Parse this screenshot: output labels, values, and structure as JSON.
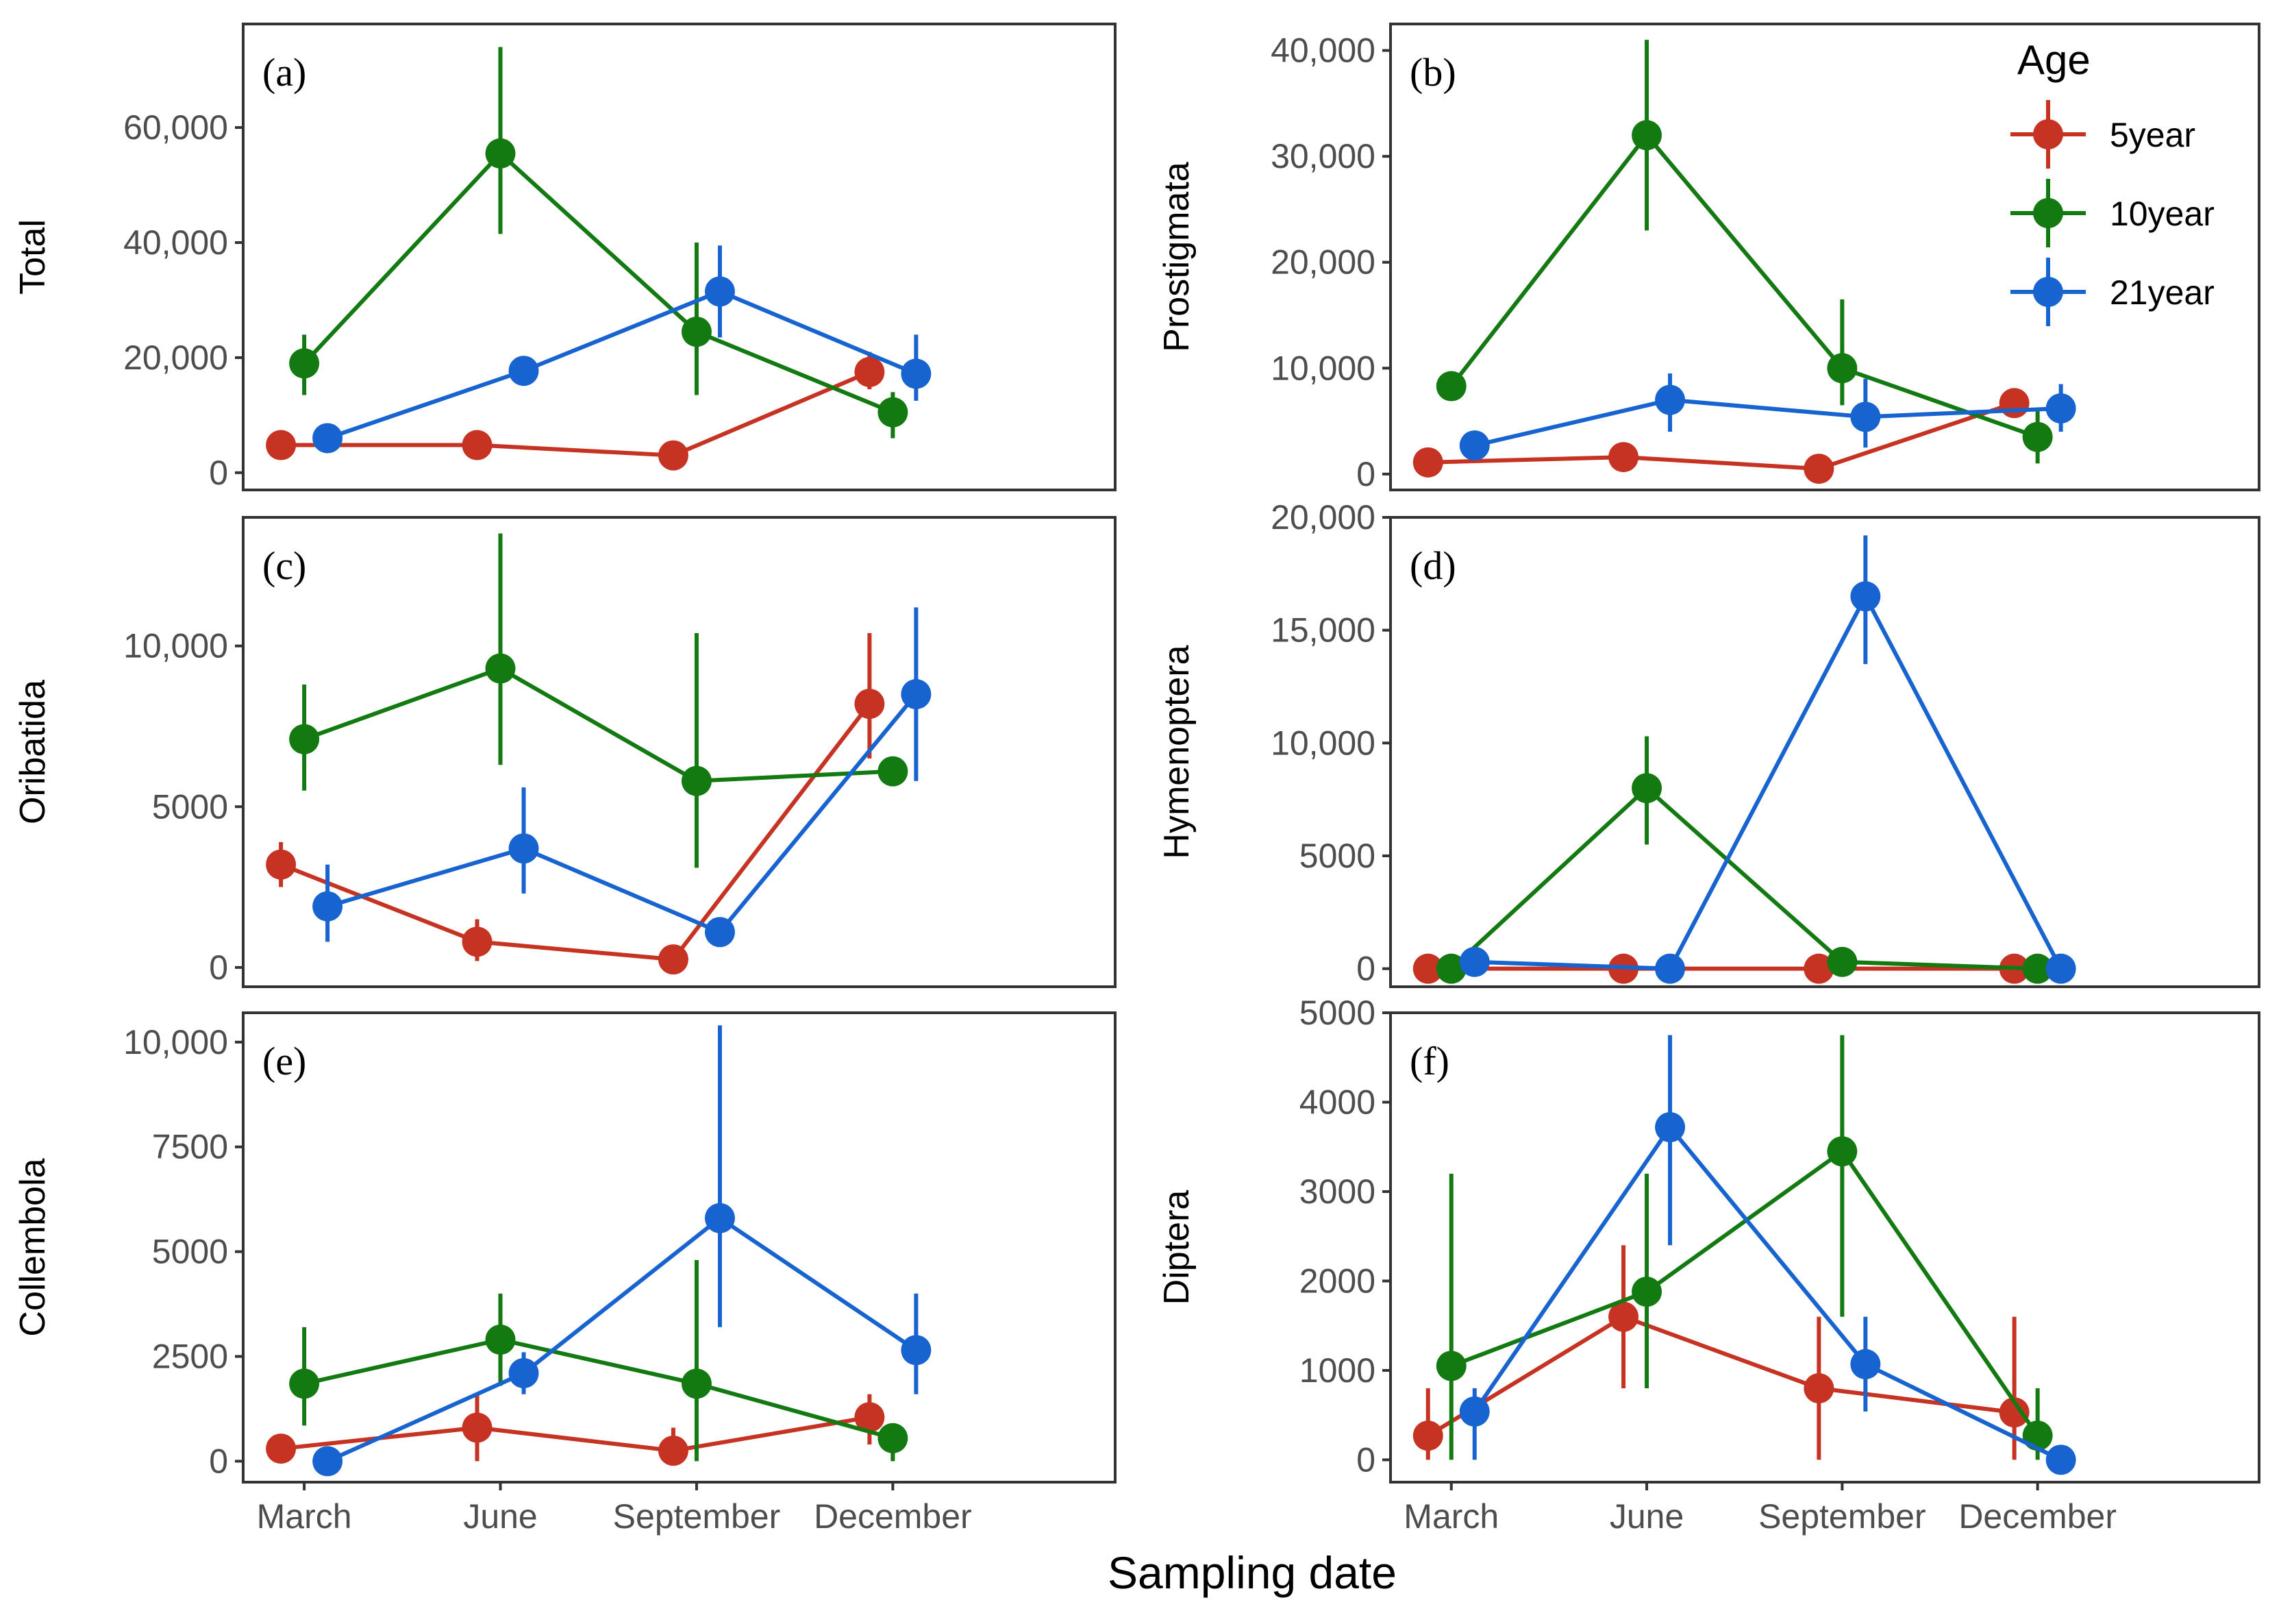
{
  "chart_data": {
    "type": "line",
    "x_title": "Sampling date",
    "categories": [
      "March",
      "June",
      "September",
      "December"
    ],
    "legend": {
      "title": "Age",
      "position": "top-right",
      "entries": [
        {
          "name": "5year",
          "color": "#c63322"
        },
        {
          "name": "10year",
          "color": "#137a12"
        },
        {
          "name": "21year",
          "color": "#1763cf"
        }
      ]
    },
    "panels": [
      {
        "label": "(a)",
        "ylabel": "Total",
        "ylim": [
          -3000,
          78000
        ],
        "yticks": [
          0,
          20000,
          40000,
          60000
        ],
        "ytick_labels": [
          "0",
          "20,000",
          "40,000",
          "60,000"
        ],
        "series": [
          {
            "name": "5year",
            "values": [
              4800,
              4800,
              3000,
              17500
            ],
            "lower": [
              4800,
              4800,
              3000,
              14500
            ],
            "upper": [
              4800,
              4800,
              3000,
              21000
            ]
          },
          {
            "name": "10year",
            "values": [
              19000,
              55500,
              24500,
              10500
            ],
            "lower": [
              13500,
              41500,
              13500,
              6000
            ],
            "upper": [
              24000,
              74000,
              40000,
              14000
            ]
          },
          {
            "name": "21year",
            "values": [
              6000,
              17700,
              31500,
              17200
            ],
            "lower": [
              6000,
              17700,
              23500,
              12500
            ],
            "upper": [
              6000,
              17700,
              39500,
              24000
            ]
          }
        ]
      },
      {
        "label": "(b)",
        "ylabel": "Prostigmata",
        "ylim": [
          -1500,
          42500
        ],
        "yticks": [
          0,
          10000,
          20000,
          30000,
          40000
        ],
        "ytick_labels": [
          "0",
          "10,000",
          "20,000",
          "30,000",
          "40,000"
        ],
        "series": [
          {
            "name": "5year",
            "values": [
              1100,
              1600,
              500,
              6700
            ],
            "lower": [
              1100,
              1600,
              500,
              6700
            ],
            "upper": [
              1100,
              1600,
              500,
              6700
            ]
          },
          {
            "name": "10year",
            "values": [
              8300,
              32000,
              10000,
              3500
            ],
            "lower": [
              8300,
              23000,
              6500,
              1000
            ],
            "upper": [
              8300,
              41000,
              16500,
              6000
            ]
          },
          {
            "name": "21year",
            "values": [
              2700,
              7000,
              5400,
              6200
            ],
            "lower": [
              2700,
              4000,
              2500,
              4000
            ],
            "upper": [
              2700,
              9500,
              9000,
              8500
            ]
          }
        ]
      },
      {
        "label": "(c)",
        "ylabel": "Oribatida",
        "ylim": [
          -600,
          14000
        ],
        "yticks": [
          0,
          5000,
          10000
        ],
        "ytick_labels": [
          "0",
          "5000",
          "10,000"
        ],
        "series": [
          {
            "name": "5year",
            "values": [
              3200,
              800,
              250,
              8200
            ],
            "lower": [
              2500,
              200,
              250,
              6500
            ],
            "upper": [
              3900,
              1500,
              250,
              10400
            ]
          },
          {
            "name": "10year",
            "values": [
              7100,
              9300,
              5800,
              6100
            ],
            "lower": [
              5500,
              6300,
              3100,
              6100
            ],
            "upper": [
              8800,
              13500,
              10400,
              6100
            ]
          },
          {
            "name": "21year",
            "values": [
              1900,
              3700,
              1100,
              8500
            ],
            "lower": [
              800,
              2300,
              1100,
              5800
            ],
            "upper": [
              3200,
              5600,
              1100,
              11200
            ]
          }
        ]
      },
      {
        "label": "(d)",
        "ylabel": "Hymenoptera",
        "ylim": [
          -800,
          20000
        ],
        "yticks": [
          0,
          5000,
          10000,
          15000,
          20000
        ],
        "ytick_labels": [
          "0",
          "5000",
          "10,000",
          "15,000",
          "20,000"
        ],
        "series": [
          {
            "name": "5year",
            "values": [
              0,
              0,
              0,
              0
            ],
            "lower": [
              0,
              0,
              0,
              0
            ],
            "upper": [
              0,
              0,
              0,
              0
            ]
          },
          {
            "name": "10year",
            "values": [
              0,
              8000,
              300,
              0
            ],
            "lower": [
              0,
              5500,
              300,
              0
            ],
            "upper": [
              0,
              10300,
              300,
              0
            ]
          },
          {
            "name": "21year",
            "values": [
              300,
              0,
              16500,
              0
            ],
            "lower": [
              300,
              0,
              13500,
              0
            ],
            "upper": [
              300,
              0,
              19200,
              0
            ]
          }
        ]
      },
      {
        "label": "(e)",
        "ylabel": "Collembola",
        "ylim": [
          -500,
          10700
        ],
        "yticks": [
          0,
          2500,
          5000,
          7500,
          10000
        ],
        "ytick_labels": [
          "0",
          "2500",
          "5000",
          "7500",
          "10,000"
        ],
        "series": [
          {
            "name": "5year",
            "values": [
              300,
              800,
              250,
              1050
            ],
            "lower": [
              300,
              0,
              0,
              400
            ],
            "upper": [
              300,
              1600,
              800,
              1600
            ]
          },
          {
            "name": "10year",
            "values": [
              1850,
              2900,
              1850,
              550
            ],
            "lower": [
              850,
              1800,
              0,
              0
            ],
            "upper": [
              3200,
              4000,
              4800,
              900
            ]
          },
          {
            "name": "21year",
            "values": [
              0,
              2100,
              5800,
              2650
            ],
            "lower": [
              0,
              1600,
              3200,
              1600
            ],
            "upper": [
              0,
              2600,
              10400,
              4000
            ]
          }
        ]
      },
      {
        "label": "(f)",
        "ylabel": "Diptera",
        "ylim": [
          -250,
          5000
        ],
        "yticks": [
          0,
          1000,
          2000,
          3000,
          4000,
          5000
        ],
        "ytick_labels": [
          "0",
          "1000",
          "2000",
          "3000",
          "4000",
          "5000"
        ],
        "series": [
          {
            "name": "5year",
            "values": [
              270,
              1600,
              800,
              530
            ],
            "lower": [
              0,
              800,
              0,
              0
            ],
            "upper": [
              800,
              2400,
              1600,
              1600
            ]
          },
          {
            "name": "10year",
            "values": [
              1050,
              1880,
              3450,
              270
            ],
            "lower": [
              0,
              800,
              1600,
              0
            ],
            "upper": [
              3200,
              3200,
              4750,
              800
            ]
          },
          {
            "name": "21year",
            "values": [
              540,
              3720,
              1070,
              0
            ],
            "lower": [
              0,
              2400,
              540,
              0
            ],
            "upper": [
              800,
              4750,
              1600,
              0
            ]
          }
        ]
      }
    ]
  }
}
